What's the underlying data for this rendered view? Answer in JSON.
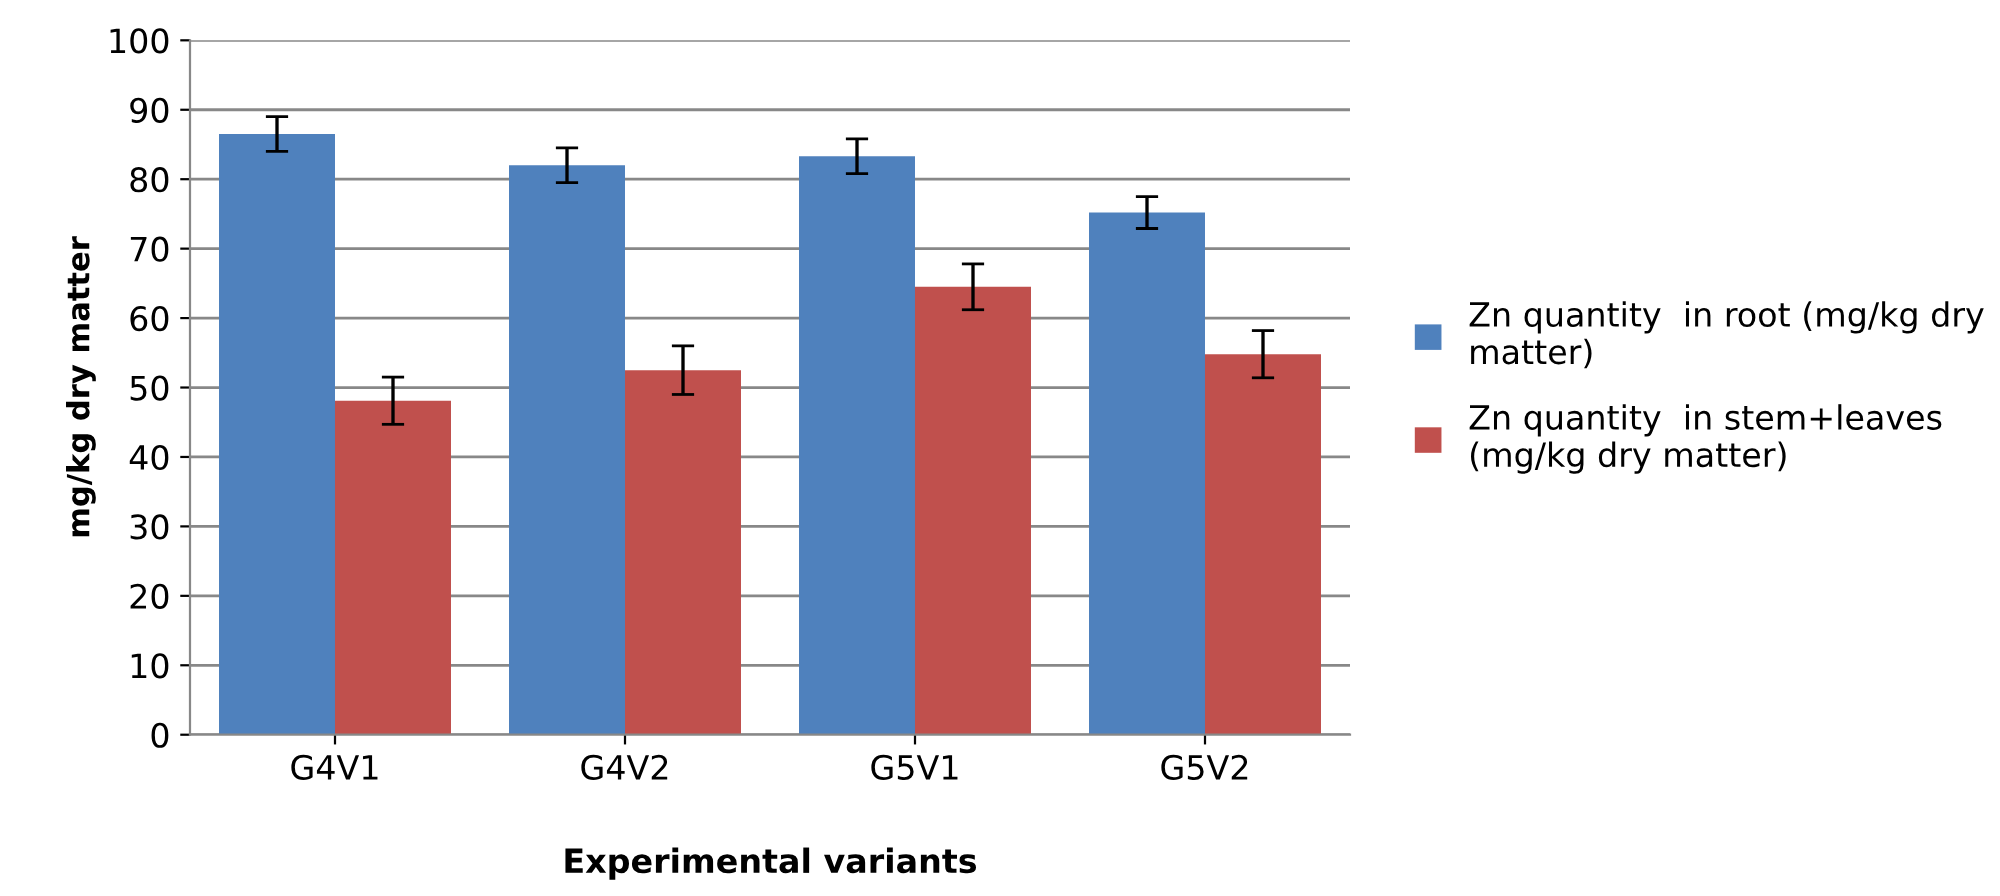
{
  "chart_data": {
    "type": "bar",
    "xlabel": "Experimental variants",
    "ylabel": "mg/kg dry matter",
    "categories": [
      "G4V1",
      "G4V2",
      "G5V1",
      "G5V2"
    ],
    "series": [
      {
        "name": "Zn quantity  in root (mg/kg dry\nmatter)",
        "color": "#4f81bd",
        "values": [
          86.5,
          82,
          83.3,
          75.2
        ],
        "errors": [
          2.5,
          2.5,
          2.5,
          2.3
        ]
      },
      {
        "name": "Zn quantity  in stem+leaves\n(mg/kg dry matter)",
        "color": "#c0504d",
        "values": [
          48.1,
          52.5,
          64.5,
          54.8
        ],
        "errors": [
          3.4,
          3.5,
          3.3,
          3.4
        ]
      }
    ],
    "ylim": [
      0,
      100
    ],
    "yticks": [
      0,
      10,
      20,
      30,
      40,
      50,
      60,
      70,
      80,
      90,
      100
    ],
    "grid": "y",
    "legend": "right"
  }
}
